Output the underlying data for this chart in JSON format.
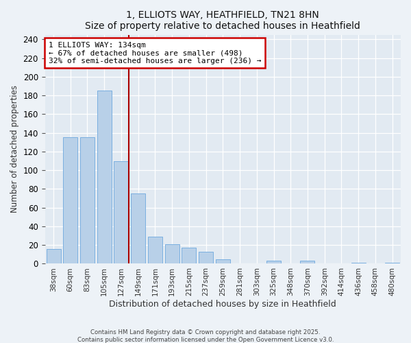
{
  "title": "1, ELLIOTS WAY, HEATHFIELD, TN21 8HN",
  "subtitle": "Size of property relative to detached houses in Heathfield",
  "xlabel": "Distribution of detached houses by size in Heathfield",
  "ylabel": "Number of detached properties",
  "bar_labels": [
    "38sqm",
    "60sqm",
    "83sqm",
    "105sqm",
    "127sqm",
    "149sqm",
    "171sqm",
    "193sqm",
    "215sqm",
    "237sqm",
    "259sqm",
    "281sqm",
    "303sqm",
    "325sqm",
    "348sqm",
    "370sqm",
    "392sqm",
    "414sqm",
    "436sqm",
    "458sqm",
    "480sqm"
  ],
  "bar_values": [
    16,
    135,
    135,
    185,
    110,
    75,
    29,
    21,
    17,
    13,
    5,
    0,
    0,
    3,
    0,
    3,
    0,
    0,
    1,
    0,
    1
  ],
  "bar_color": "#b8d0e8",
  "bar_edge_color": "#7aafe0",
  "vline_position": 4.45,
  "vline_color": "#aa0000",
  "annotation_title": "1 ELLIOTS WAY: 134sqm",
  "annotation_line1": "← 67% of detached houses are smaller (498)",
  "annotation_line2": "32% of semi-detached houses are larger (236) →",
  "annotation_box_color": "#cc0000",
  "ylim": [
    0,
    245
  ],
  "yticks": [
    0,
    20,
    40,
    60,
    80,
    100,
    120,
    140,
    160,
    180,
    200,
    220,
    240
  ],
  "footnote1": "Contains HM Land Registry data © Crown copyright and database right 2025.",
  "footnote2": "Contains public sector information licensed under the Open Government Licence v3.0.",
  "bg_color": "#edf2f7",
  "plot_bg_color": "#e2eaf2"
}
